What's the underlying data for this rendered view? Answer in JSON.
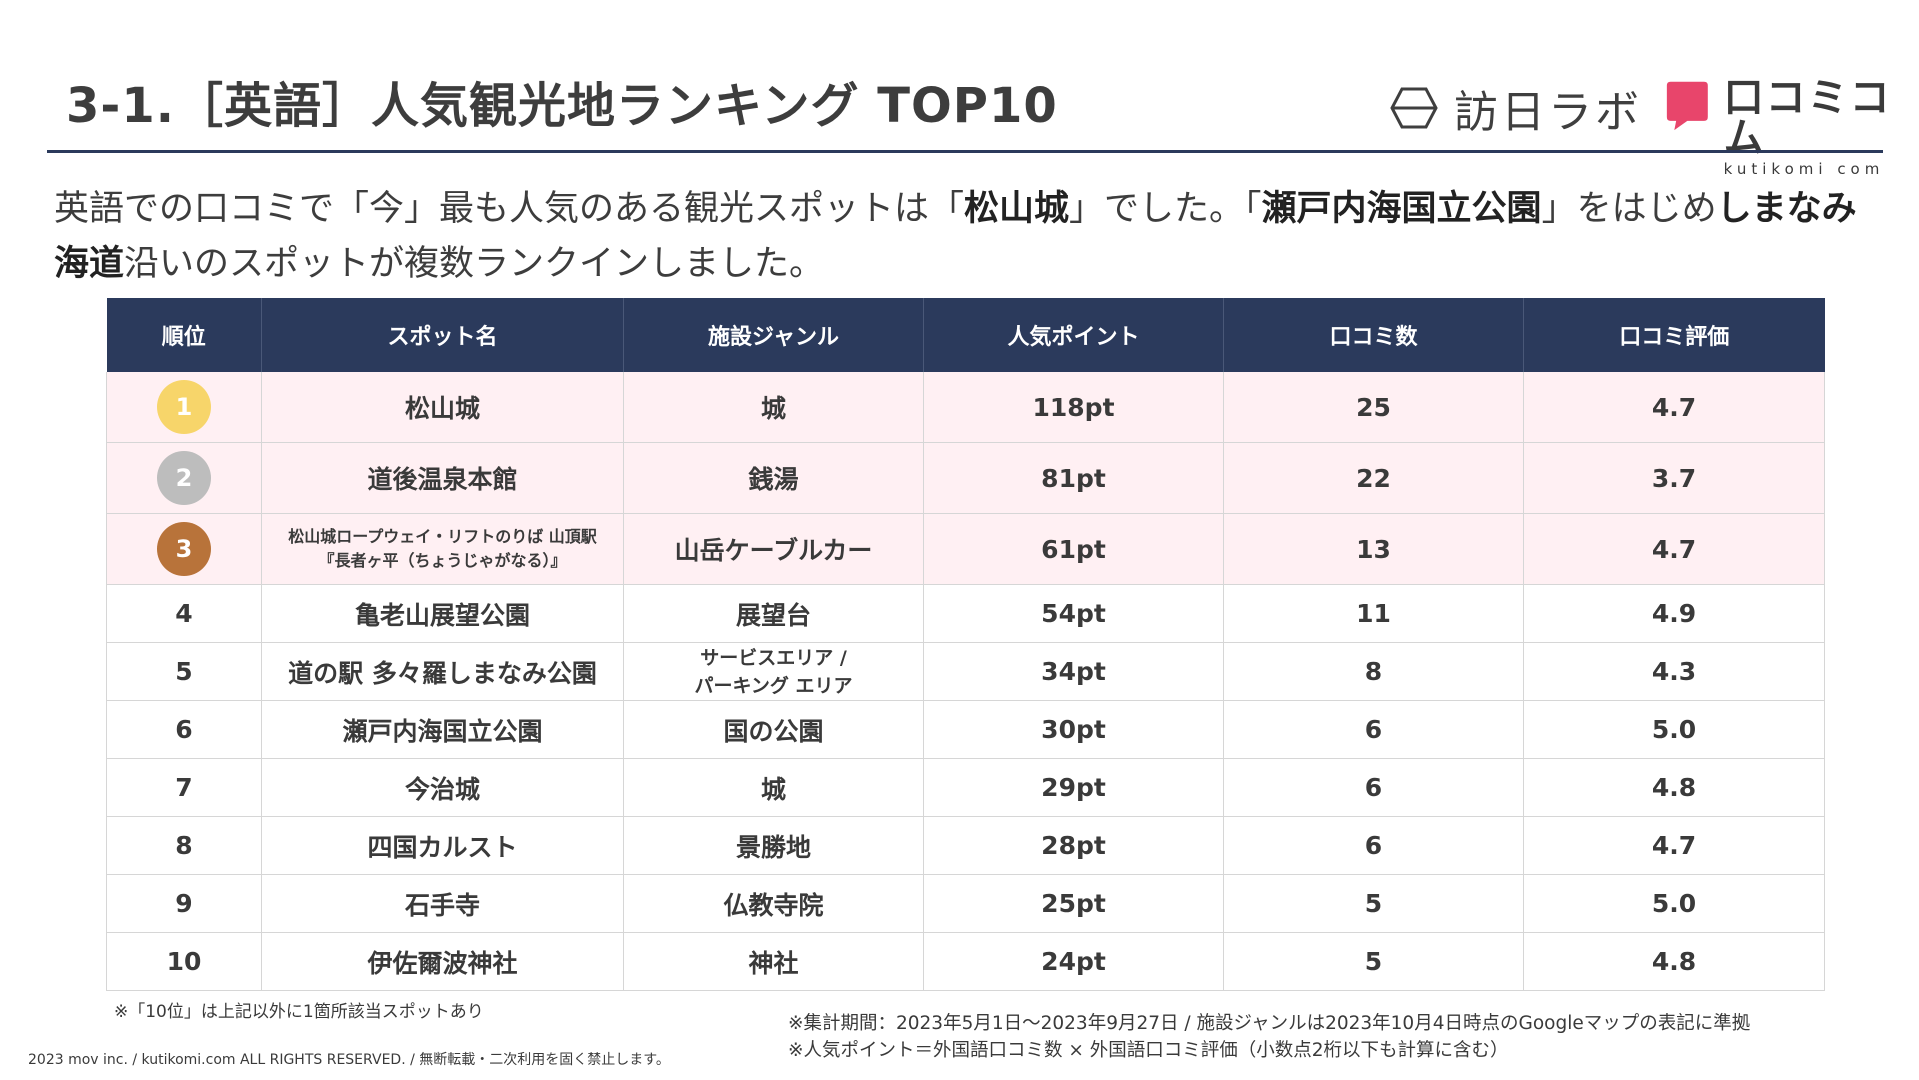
{
  "header": {
    "title": "3-1.［英語］人気観光地ランキング TOP10",
    "logo_houjin": "訪日ラボ",
    "logo_kutikomi_big": "口コミコム",
    "logo_kutikomi_small": "kutikomi com"
  },
  "lead": {
    "p1": "英語での口コミで「今」最も人気のある観光スポットは「",
    "b1": "松山城",
    "p2": "」でした。「",
    "b2": "瀬戸内海国立公園",
    "p3": "」をはじめ",
    "b3": "しまなみ海道",
    "p4": "沿いのスポットが複数ランクインしました。"
  },
  "table": {
    "headers": [
      "順位",
      "スポット名",
      "施設ジャンル",
      "人気ポイント",
      "口コミ数",
      "口コミ評価"
    ],
    "rows": [
      {
        "rank": "1",
        "spot": "松山城",
        "genre": "城",
        "points": "118pt",
        "reviews": "25",
        "rating": "4.7"
      },
      {
        "rank": "2",
        "spot": "道後温泉本館",
        "genre": "銭湯",
        "points": "81pt",
        "reviews": "22",
        "rating": "3.7"
      },
      {
        "rank": "3",
        "spot_line1": "松山城ロープウェイ・リフトのりば 山頂駅",
        "spot_line2": "『長者ヶ平（ちょうじゃがなる）』",
        "genre": "山岳ケーブルカー",
        "points": "61pt",
        "reviews": "13",
        "rating": "4.7"
      },
      {
        "rank": "4",
        "spot": "亀老山展望公園",
        "genre": "展望台",
        "points": "54pt",
        "reviews": "11",
        "rating": "4.9"
      },
      {
        "rank": "5",
        "spot": "道の駅 多々羅しまなみ公園",
        "genre_line1": "サービスエリア /",
        "genre_line2": "パーキング エリア",
        "points": "34pt",
        "reviews": "8",
        "rating": "4.3"
      },
      {
        "rank": "6",
        "spot": "瀬戸内海国立公園",
        "genre": "国の公園",
        "points": "30pt",
        "reviews": "6",
        "rating": "5.0"
      },
      {
        "rank": "7",
        "spot": "今治城",
        "genre": "城",
        "points": "29pt",
        "reviews": "6",
        "rating": "4.8"
      },
      {
        "rank": "8",
        "spot": "四国カルスト",
        "genre": "景勝地",
        "points": "28pt",
        "reviews": "6",
        "rating": "4.7"
      },
      {
        "rank": "9",
        "spot": "石手寺",
        "genre": "仏教寺院",
        "points": "25pt",
        "reviews": "5",
        "rating": "5.0"
      },
      {
        "rank": "10",
        "spot": "伊佐爾波神社",
        "genre": "神社",
        "points": "24pt",
        "reviews": "5",
        "rating": "4.8"
      }
    ]
  },
  "colors": {
    "header_bg": "#2b3a5c",
    "top_row_bg": "#fff0f3",
    "gold": "#f7d56a",
    "silver": "#bdbdbd",
    "bronze": "#b8733a",
    "brand_pink": "#e8456b"
  },
  "footer": {
    "note_left": "※「10位」は上記以外に1箇所該当スポットあり",
    "copyright": "2023 mov inc. / kutikomi.com ALL RIGHTS RESERVED. / 無断転載・二次利用を固く禁止します。",
    "note_right_1": "※集計期間：2023年5月1日〜2023年9月27日 / 施設ジャンルは2023年10月4日時点のGoogleマップの表記に準拠",
    "note_right_2": "※人気ポイント＝外国語口コミ数 × 外国語口コミ評価（小数点2桁以下も計算に含む）"
  }
}
